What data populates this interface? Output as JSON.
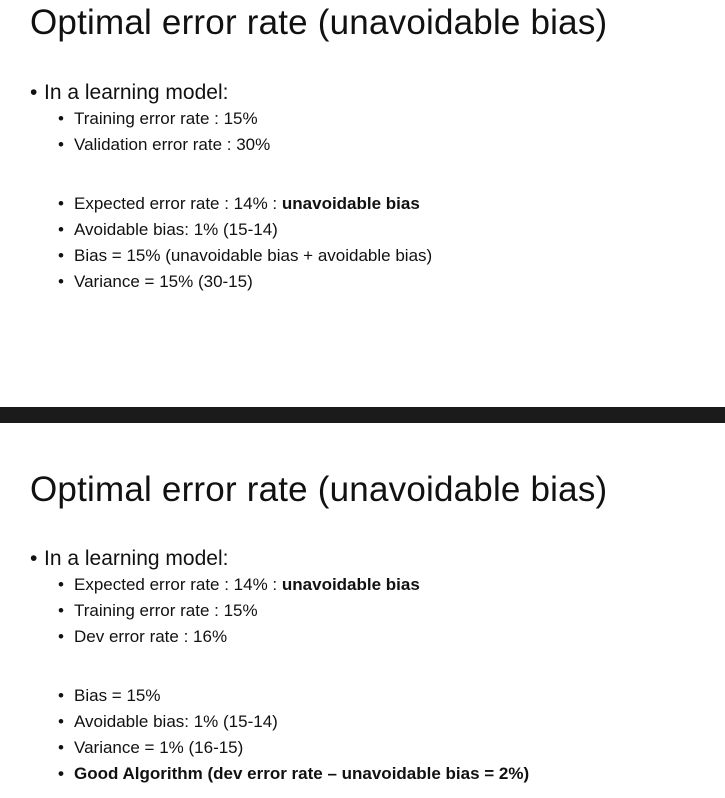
{
  "slide1": {
    "title": "Optimal error rate (unavoidable bias)",
    "intro": "In a learning model:",
    "group_a": [
      "Training error rate : 15%",
      "Validation error rate : 30%"
    ],
    "group_b": {
      "expected_prefix": "Expected error rate : 14% : ",
      "expected_bold": "unavoidable bias",
      "avoidable": "Avoidable bias:  1% (15-14)",
      "bias": "Bias =  15% (unavoidable bias + avoidable bias)",
      "variance": "Variance = 15% (30-15)"
    }
  },
  "slide2": {
    "title": "Optimal error rate (unavoidable bias)",
    "intro": "In a learning model:",
    "group_a": {
      "expected_prefix": "Expected error rate : 14% : ",
      "expected_bold": "unavoidable bias",
      "training": "Training error rate : 15%",
      "dev": "Dev error rate : 16%"
    },
    "group_b": {
      "bias": "Bias =  15%",
      "avoidable": "Avoidable bias:  1% (15-14)",
      "variance": "Variance = 1% (16-15)",
      "good": "Good Algorithm (dev error rate – unavoidable bias = 2%)"
    }
  },
  "bullet": "•"
}
